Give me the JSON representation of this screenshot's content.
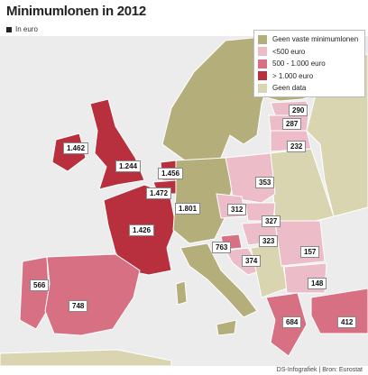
{
  "title": "Minimumlonen in 2012",
  "unit_note": "In euro",
  "colors": {
    "none": "#b3ae7a",
    "lt500": "#edbcc9",
    "mid": "#d87083",
    "high": "#b8303d",
    "nodata": "#d8d5b0"
  },
  "legend": [
    {
      "label": "Geen vaste minimumlonen",
      "color": "#b3ae7a"
    },
    {
      "label": "<500 euro",
      "color": "#edbcc9"
    },
    {
      "label": "500 - 1.000 euro",
      "color": "#d87083"
    },
    {
      "label": "> 1.000 euro",
      "color": "#b8303d"
    },
    {
      "label": "Geen data",
      "color": "#d8d5b0"
    }
  ],
  "values": [
    {
      "country": "Ierland",
      "value": "1.462"
    },
    {
      "country": "Verenigd Koninkrijk",
      "value": "1.244"
    },
    {
      "country": "Nederland",
      "value": "1.456"
    },
    {
      "country": "België",
      "value": "1.472"
    },
    {
      "country": "Luxemburg",
      "value": "1.801"
    },
    {
      "country": "Frankrijk",
      "value": "1.426"
    },
    {
      "country": "Portugal",
      "value": "566"
    },
    {
      "country": "Spanje",
      "value": "748"
    },
    {
      "country": "Estland",
      "value": "290"
    },
    {
      "country": "Letland",
      "value": "287"
    },
    {
      "country": "Litouwen",
      "value": "232"
    },
    {
      "country": "Polen",
      "value": "353"
    },
    {
      "country": "Tsjechië",
      "value": "312"
    },
    {
      "country": "Slowakije",
      "value": "327"
    },
    {
      "country": "Hongarije",
      "value": "323"
    },
    {
      "country": "Slovenië",
      "value": "763"
    },
    {
      "country": "Kroatië",
      "value": "374"
    },
    {
      "country": "Roemenië",
      "value": "157"
    },
    {
      "country": "Bulgarije",
      "value": "148"
    },
    {
      "country": "Griekenland",
      "value": "684"
    },
    {
      "country": "Turkije",
      "value": "412"
    }
  ],
  "source": "DS-Infografiek | Bron: Eurostat"
}
